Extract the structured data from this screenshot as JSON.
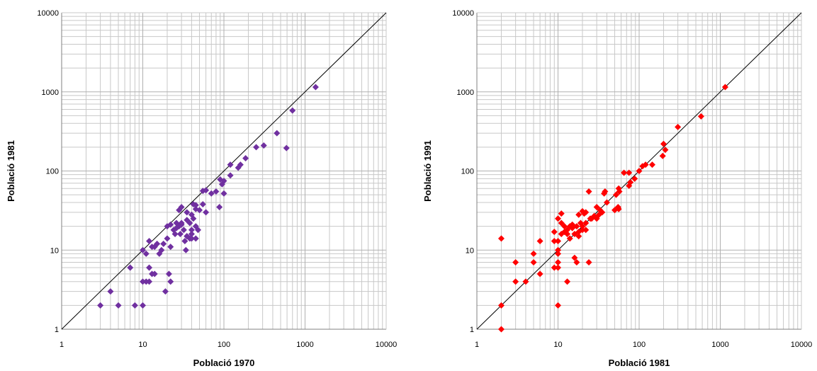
{
  "chart_data": [
    {
      "type": "scatter",
      "title": "",
      "xlabel": "Població 1970",
      "ylabel": "Població 1981",
      "xscale": "log",
      "yscale": "log",
      "xlim": [
        1,
        10000
      ],
      "ylim": [
        1,
        10000
      ],
      "xticks": [
        "1",
        "10",
        "100",
        "1000",
        "10000"
      ],
      "yticks": [
        "1",
        "10",
        "100",
        "1000",
        "10000"
      ],
      "grid": true,
      "reference_line": "y = x",
      "marker": "diamond",
      "color": "#7030A0",
      "points": [
        [
          1350,
          1150
        ],
        [
          700,
          580
        ],
        [
          450,
          300
        ],
        [
          310,
          210
        ],
        [
          250,
          200
        ],
        [
          590,
          195
        ],
        [
          185,
          145
        ],
        [
          160,
          120
        ],
        [
          150,
          110
        ],
        [
          120,
          120
        ],
        [
          120,
          88
        ],
        [
          100,
          75
        ],
        [
          90,
          78
        ],
        [
          95,
          68
        ],
        [
          88,
          35
        ],
        [
          100,
          52
        ],
        [
          80,
          55
        ],
        [
          70,
          52
        ],
        [
          60,
          57
        ],
        [
          55,
          56
        ],
        [
          55,
          38
        ],
        [
          45,
          37
        ],
        [
          50,
          32
        ],
        [
          60,
          30
        ],
        [
          42,
          38
        ],
        [
          45,
          33
        ],
        [
          40,
          28
        ],
        [
          35,
          30
        ],
        [
          42,
          25
        ],
        [
          38,
          22
        ],
        [
          40,
          18
        ],
        [
          40,
          16
        ],
        [
          30,
          35
        ],
        [
          28,
          32
        ],
        [
          26,
          22
        ],
        [
          30,
          21
        ],
        [
          28,
          20
        ],
        [
          26,
          19
        ],
        [
          32,
          18
        ],
        [
          35,
          15
        ],
        [
          22,
          21
        ],
        [
          25,
          16
        ],
        [
          24,
          18
        ],
        [
          20,
          14
        ],
        [
          18,
          12
        ],
        [
          20,
          20
        ],
        [
          22,
          11
        ],
        [
          35,
          15
        ],
        [
          15,
          12
        ],
        [
          17,
          10
        ],
        [
          16,
          9
        ],
        [
          14,
          11
        ],
        [
          12,
          13
        ],
        [
          13,
          11
        ],
        [
          10,
          10
        ],
        [
          11,
          9
        ],
        [
          40,
          14
        ],
        [
          34,
          10
        ],
        [
          38,
          14
        ],
        [
          45,
          14
        ],
        [
          48,
          18
        ],
        [
          30,
          22
        ],
        [
          45,
          20
        ],
        [
          35,
          24
        ],
        [
          7,
          6
        ],
        [
          12,
          6
        ],
        [
          14,
          5
        ],
        [
          13,
          5
        ],
        [
          21,
          5
        ],
        [
          22,
          4
        ],
        [
          10,
          4
        ],
        [
          11,
          4
        ],
        [
          12,
          4
        ],
        [
          19,
          3
        ],
        [
          4,
          3
        ],
        [
          3,
          2
        ],
        [
          5,
          2
        ],
        [
          8,
          2
        ],
        [
          10,
          2
        ],
        [
          29,
          16
        ],
        [
          33,
          13
        ]
      ]
    },
    {
      "type": "scatter",
      "title": "",
      "xlabel": "Població 1981",
      "ylabel": "Població 1991",
      "xscale": "log",
      "yscale": "log",
      "xlim": [
        1,
        10000
      ],
      "ylim": [
        1,
        10000
      ],
      "xticks": [
        "1",
        "10",
        "100",
        "1000",
        "10000"
      ],
      "yticks": [
        "1",
        "10",
        "100",
        "1000",
        "10000"
      ],
      "grid": true,
      "reference_line": "y = x",
      "marker": "diamond",
      "color": "#FF0000",
      "points": [
        [
          1150,
          1150
        ],
        [
          580,
          490
        ],
        [
          300,
          360
        ],
        [
          200,
          220
        ],
        [
          210,
          185
        ],
        [
          195,
          155
        ],
        [
          145,
          120
        ],
        [
          120,
          120
        ],
        [
          110,
          115
        ],
        [
          88,
          80
        ],
        [
          100,
          100
        ],
        [
          78,
          72
        ],
        [
          75,
          95
        ],
        [
          65,
          95
        ],
        [
          75,
          65
        ],
        [
          52,
          50
        ],
        [
          57,
          55
        ],
        [
          56,
          60
        ],
        [
          55,
          35
        ],
        [
          50,
          32
        ],
        [
          56,
          33
        ],
        [
          40,
          40
        ],
        [
          38,
          55
        ],
        [
          37,
          52
        ],
        [
          35,
          30
        ],
        [
          32,
          28
        ],
        [
          30,
          35
        ],
        [
          33,
          32
        ],
        [
          28,
          27
        ],
        [
          25,
          25
        ],
        [
          24,
          55
        ],
        [
          22,
          30
        ],
        [
          21,
          29
        ],
        [
          20,
          31
        ],
        [
          18,
          28
        ],
        [
          19,
          22
        ],
        [
          20,
          20
        ],
        [
          22,
          22
        ],
        [
          18,
          17
        ],
        [
          16,
          16
        ],
        [
          15,
          19
        ],
        [
          14,
          14
        ],
        [
          13,
          18
        ],
        [
          12,
          20
        ],
        [
          11,
          22
        ],
        [
          11,
          16
        ],
        [
          10,
          13
        ],
        [
          10,
          9
        ],
        [
          11,
          29
        ],
        [
          10,
          25
        ],
        [
          9,
          17
        ],
        [
          9,
          13
        ],
        [
          10,
          10
        ],
        [
          13,
          16
        ],
        [
          12,
          17
        ],
        [
          15,
          21
        ],
        [
          6,
          13
        ],
        [
          5,
          9
        ],
        [
          5,
          7
        ],
        [
          6,
          5
        ],
        [
          4,
          4
        ],
        [
          3,
          7
        ],
        [
          3,
          4
        ],
        [
          2,
          14
        ],
        [
          2,
          2
        ],
        [
          2,
          1
        ],
        [
          10,
          7
        ],
        [
          9,
          6
        ],
        [
          10,
          6
        ],
        [
          13,
          4
        ],
        [
          16,
          8
        ],
        [
          17,
          7
        ],
        [
          24,
          7
        ],
        [
          10,
          2
        ],
        [
          20,
          18
        ],
        [
          14,
          20
        ],
        [
          17,
          20
        ],
        [
          26,
          25
        ],
        [
          18,
          15
        ],
        [
          30,
          25
        ],
        [
          22,
          18
        ]
      ]
    }
  ]
}
